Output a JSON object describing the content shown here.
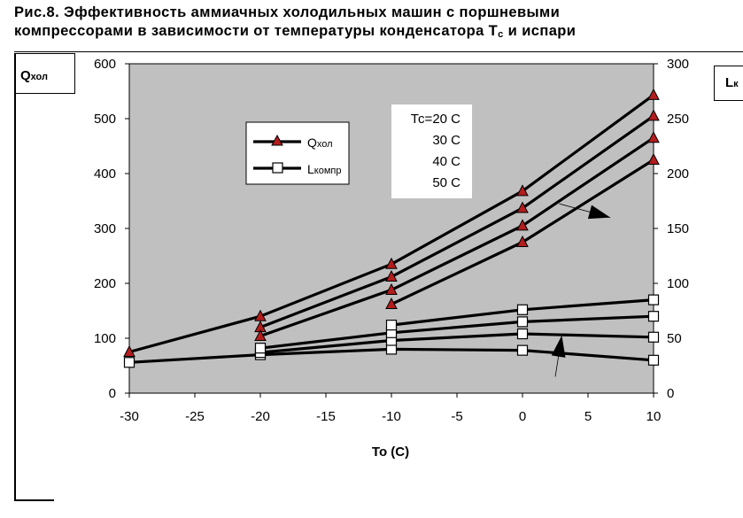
{
  "header": {
    "title_line1": "Рис.8. Эффективность аммиачных холодильных машин с поршневыми",
    "title_line2_a": "компрессорами в зависимости от температуры конденсатора  T",
    "title_line2_sub": "c",
    "title_line2_b": "  и испари"
  },
  "axes": {
    "left_main": "Q",
    "left_sub": "хол",
    "right_main": "L",
    "right_sub": "к",
    "xlabel": "To (C)"
  },
  "legend": {
    "q_main": "Q",
    "q_sub": "хол",
    "l_main": "L",
    "l_sub": "компр"
  },
  "tc_labels": [
    "Тс=20 С",
    "30 С",
    "40 С",
    "50 С"
  ],
  "chart_data": {
    "type": "line",
    "xlabel": "To (C)",
    "xlim": [
      -30,
      10
    ],
    "xticks": [
      -30,
      -25,
      -20,
      -15,
      -10,
      -5,
      0,
      5,
      10
    ],
    "ylim_left": [
      0,
      600
    ],
    "yticks_left": [
      0,
      100,
      200,
      300,
      400,
      500,
      600
    ],
    "ylim_right": [
      0,
      300
    ],
    "yticks_right": [
      0,
      50,
      100,
      150,
      200,
      250,
      300
    ],
    "grid": false,
    "legend_position": "upper-left inside plot",
    "background": "#c0c0c0",
    "series": [
      {
        "name": "Qхол",
        "condition": "Тс=20 С",
        "axis": "left",
        "marker": "triangle",
        "x": [
          -30,
          -20,
          -10,
          0,
          10
        ],
        "y": [
          75,
          140,
          235,
          368,
          543
        ]
      },
      {
        "name": "Qхол",
        "condition": "30 С",
        "axis": "left",
        "marker": "triangle",
        "x": [
          -20,
          -10,
          0,
          10
        ],
        "y": [
          120,
          212,
          337,
          505
        ]
      },
      {
        "name": "Qхол",
        "condition": "40 С",
        "axis": "left",
        "marker": "triangle",
        "x": [
          -20,
          -10,
          0,
          10
        ],
        "y": [
          104,
          188,
          305,
          465
        ]
      },
      {
        "name": "Qхол",
        "condition": "50 С",
        "axis": "left",
        "marker": "triangle",
        "x": [
          -10,
          0,
          10
        ],
        "y": [
          162,
          275,
          425
        ]
      },
      {
        "name": "Lкомпр",
        "condition": "Тс=20 С",
        "axis": "right",
        "marker": "square",
        "x": [
          -30,
          -20,
          -10,
          0,
          10
        ],
        "y": [
          28,
          35,
          40,
          39,
          30
        ]
      },
      {
        "name": "Lкомпр",
        "condition": "30 С",
        "axis": "right",
        "marker": "square",
        "x": [
          -20,
          -10,
          0,
          10
        ],
        "y": [
          37,
          48,
          54,
          51
        ]
      },
      {
        "name": "Lкомпр",
        "condition": "40 С",
        "axis": "right",
        "marker": "square",
        "x": [
          -20,
          -10,
          0,
          10
        ],
        "y": [
          41,
          55,
          65,
          70
        ]
      },
      {
        "name": "Lкомпр",
        "condition": "50 С",
        "axis": "right",
        "marker": "square",
        "x": [
          -10,
          0,
          10
        ],
        "y": [
          62,
          76,
          85
        ]
      }
    ],
    "annotations": [
      {
        "type": "arrow",
        "from": [
          2.8,
          345
        ],
        "to": [
          6.7,
          320
        ],
        "axis": "left",
        "meaning": "increasing Tc"
      },
      {
        "type": "arrow",
        "from": [
          2.5,
          30
        ],
        "to": [
          3.0,
          105
        ],
        "axis": "left",
        "meaning": "increasing Tc"
      }
    ],
    "colors": {
      "line": "#000000",
      "triangle_fill": "#b21d1d",
      "square_fill": "#ffffff",
      "plot_bg": "#c0c0c0"
    }
  }
}
